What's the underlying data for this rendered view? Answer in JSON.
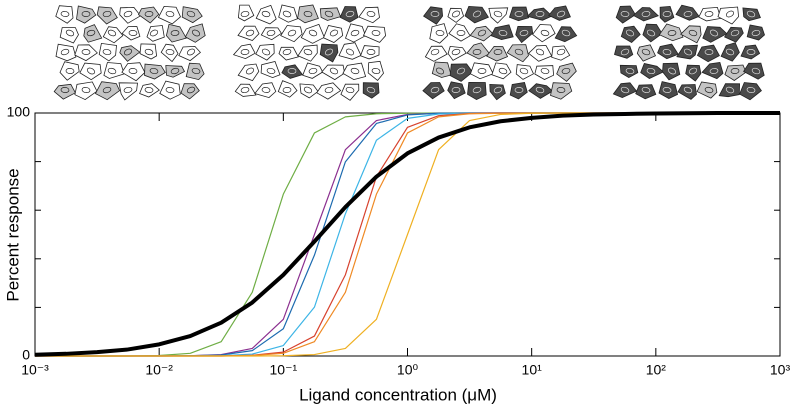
{
  "chart_data": {
    "type": "line",
    "xlabel": "Ligand concentration (μM)",
    "ylabel": "Percent response",
    "xscale": "log",
    "xlim": [
      0.001,
      1000
    ],
    "ylim": [
      0,
      100
    ],
    "xticks": [
      {
        "value": 0.001,
        "label": "10⁻³"
      },
      {
        "value": 0.01,
        "label": "10⁻²"
      },
      {
        "value": 0.1,
        "label": "10⁻¹"
      },
      {
        "value": 1,
        "label": "10⁰"
      },
      {
        "value": 10,
        "label": "10¹"
      },
      {
        "value": 100,
        "label": "10²"
      },
      {
        "value": 1000,
        "label": "10³"
      }
    ],
    "yticks": [
      0,
      100
    ],
    "yminorticks": [
      20,
      40,
      60,
      80
    ],
    "x": [
      0.001,
      0.00178,
      0.00316,
      0.00562,
      0.01,
      0.0178,
      0.0316,
      0.0562,
      0.1,
      0.178,
      0.316,
      0.562,
      1,
      1.78,
      3.16,
      5.62,
      10,
      17.8,
      31.6,
      56.2,
      100,
      178,
      316,
      562,
      1000
    ],
    "series": [
      {
        "color": "#6fae45",
        "width": 1.2,
        "values": [
          0,
          0,
          0,
          0,
          0.2,
          1.1,
          5.9,
          26.2,
          66.6,
          91.8,
          98.4,
          99.7,
          99.9,
          100,
          100,
          100,
          100,
          100,
          100,
          100,
          100,
          100,
          100,
          100,
          100
        ]
      },
      {
        "color": "#8b2f8f",
        "width": 1.2,
        "values": [
          0,
          0,
          0,
          0,
          0,
          0.1,
          0.6,
          3.1,
          15.1,
          50,
          84.9,
          96.9,
          99.4,
          99.9,
          100,
          100,
          100,
          100,
          100,
          100,
          100,
          100,
          100,
          100,
          100
        ]
      },
      {
        "color": "#1d6bb0",
        "width": 1.2,
        "values": [
          0,
          0,
          0,
          0,
          0,
          0.1,
          0.4,
          2.2,
          11.2,
          41.5,
          79.9,
          95.7,
          99.2,
          99.9,
          100,
          100,
          100,
          100,
          100,
          100,
          100,
          100,
          100,
          100,
          100
        ]
      },
      {
        "color": "#3db5e6",
        "width": 1.2,
        "values": [
          0,
          0,
          0,
          0,
          0,
          0,
          0.1,
          0.8,
          4.3,
          20.1,
          58.5,
          88.8,
          97.8,
          99.6,
          99.9,
          100,
          100,
          100,
          100,
          100,
          100,
          100,
          100,
          100,
          100
        ]
      },
      {
        "color": "#d7422e",
        "width": 1.2,
        "values": [
          0,
          0,
          0,
          0,
          0,
          0,
          0,
          0.3,
          1.6,
          8.2,
          33.4,
          73.8,
          94.1,
          98.9,
          99.8,
          100,
          100,
          100,
          100,
          100,
          100,
          100,
          100,
          100,
          100
        ]
      },
      {
        "color": "#ef8a25",
        "width": 1.2,
        "values": [
          0,
          0,
          0,
          0,
          0,
          0,
          0,
          0.2,
          1.1,
          5.9,
          26.2,
          66.6,
          91.8,
          98.4,
          99.7,
          99.9,
          100,
          100,
          100,
          100,
          100,
          100,
          100,
          100,
          100
        ]
      },
      {
        "color": "#efb022",
        "width": 1.2,
        "values": [
          0,
          0,
          0,
          0,
          0,
          0,
          0,
          0,
          0.1,
          0.6,
          3.1,
          15.1,
          50,
          84.9,
          96.9,
          99.4,
          99.9,
          100,
          100,
          100,
          100,
          100,
          100,
          100,
          100
        ]
      },
      {
        "color": "#000000",
        "width": 4,
        "values": [
          0.5,
          0.9,
          1.6,
          2.7,
          4.8,
          8.2,
          13.7,
          22.0,
          33.4,
          47.1,
          61.3,
          73.8,
          83.4,
          89.9,
          94.1,
          96.6,
          98.0,
          98.9,
          99.4,
          99.6,
          99.8,
          99.9,
          100,
          100,
          100
        ]
      }
    ]
  }
}
